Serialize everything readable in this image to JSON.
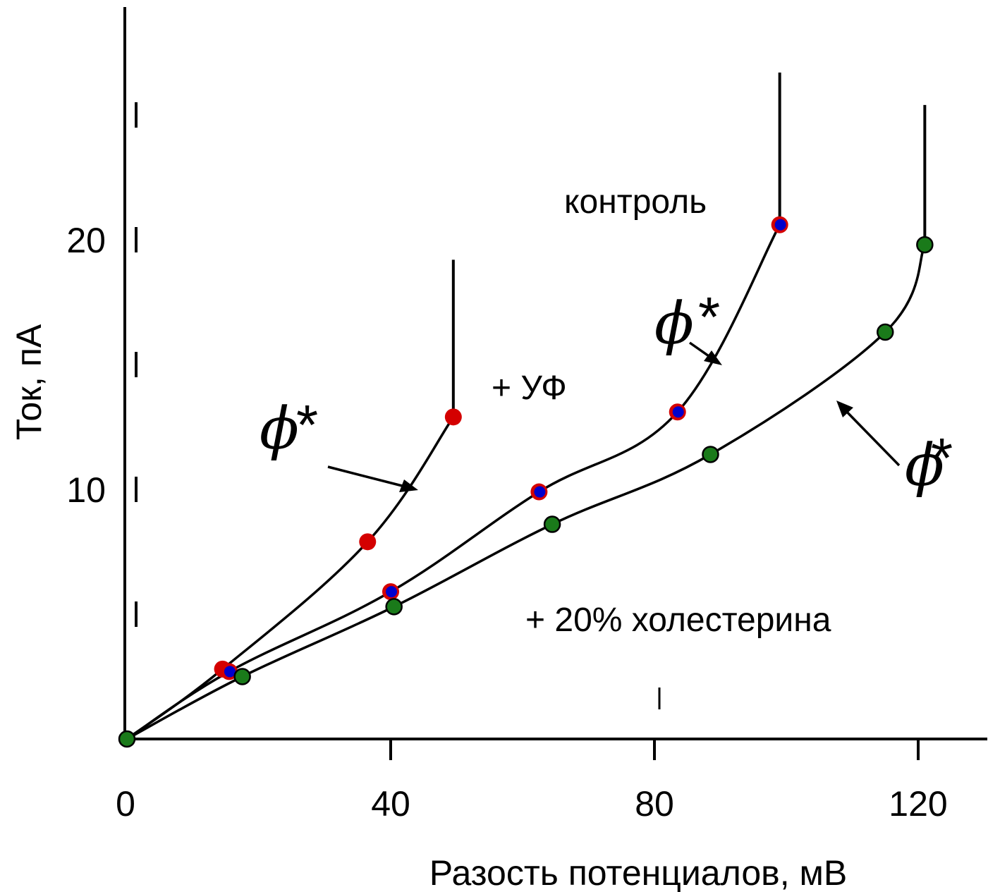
{
  "chart_data": {
    "type": "line",
    "xlabel": "Разость потенциалов, мВ",
    "ylabel": "Ток, пА",
    "xlim": [
      0,
      130
    ],
    "ylim": [
      0,
      29
    ],
    "x_ticks": [
      0,
      40,
      80,
      120
    ],
    "y_ticks": [
      10,
      20
    ],
    "grid": false,
    "series": [
      {
        "name": "+ УФ",
        "marker_color": "#d40000",
        "points": [
          [
            0,
            0
          ],
          [
            14.5,
            2.8
          ],
          [
            36.5,
            7.9
          ],
          [
            49.5,
            12.9
          ]
        ],
        "breakdown_x": 49.5,
        "breakdown_y_end": 19.2
      },
      {
        "name": "контроль",
        "marker_color": "#0000cc",
        "marker_ring": "#d40000",
        "points": [
          [
            0,
            0
          ],
          [
            15.5,
            2.7
          ],
          [
            40,
            5.9
          ],
          [
            62.5,
            9.9
          ],
          [
            83.5,
            13.1
          ],
          [
            99,
            20.6
          ]
        ],
        "breakdown_x": 99,
        "breakdown_y_end": 26.7
      },
      {
        "name": "+ 20% холестерина",
        "marker_color": "#1a7a1a",
        "points": [
          [
            0,
            0
          ],
          [
            17.5,
            2.5
          ],
          [
            40.5,
            5.3
          ],
          [
            64.5,
            8.6
          ],
          [
            88.5,
            11.4
          ],
          [
            115,
            16.3
          ],
          [
            121,
            19.8
          ]
        ],
        "breakdown_x": 121,
        "breakdown_y_end": 25.4
      }
    ],
    "annotations": {
      "uv": "+ УФ",
      "control": "контроль",
      "cholesterol": "+ 20% холестерина",
      "phi_symbol": "ϕ",
      "phi_star": "*"
    }
  }
}
